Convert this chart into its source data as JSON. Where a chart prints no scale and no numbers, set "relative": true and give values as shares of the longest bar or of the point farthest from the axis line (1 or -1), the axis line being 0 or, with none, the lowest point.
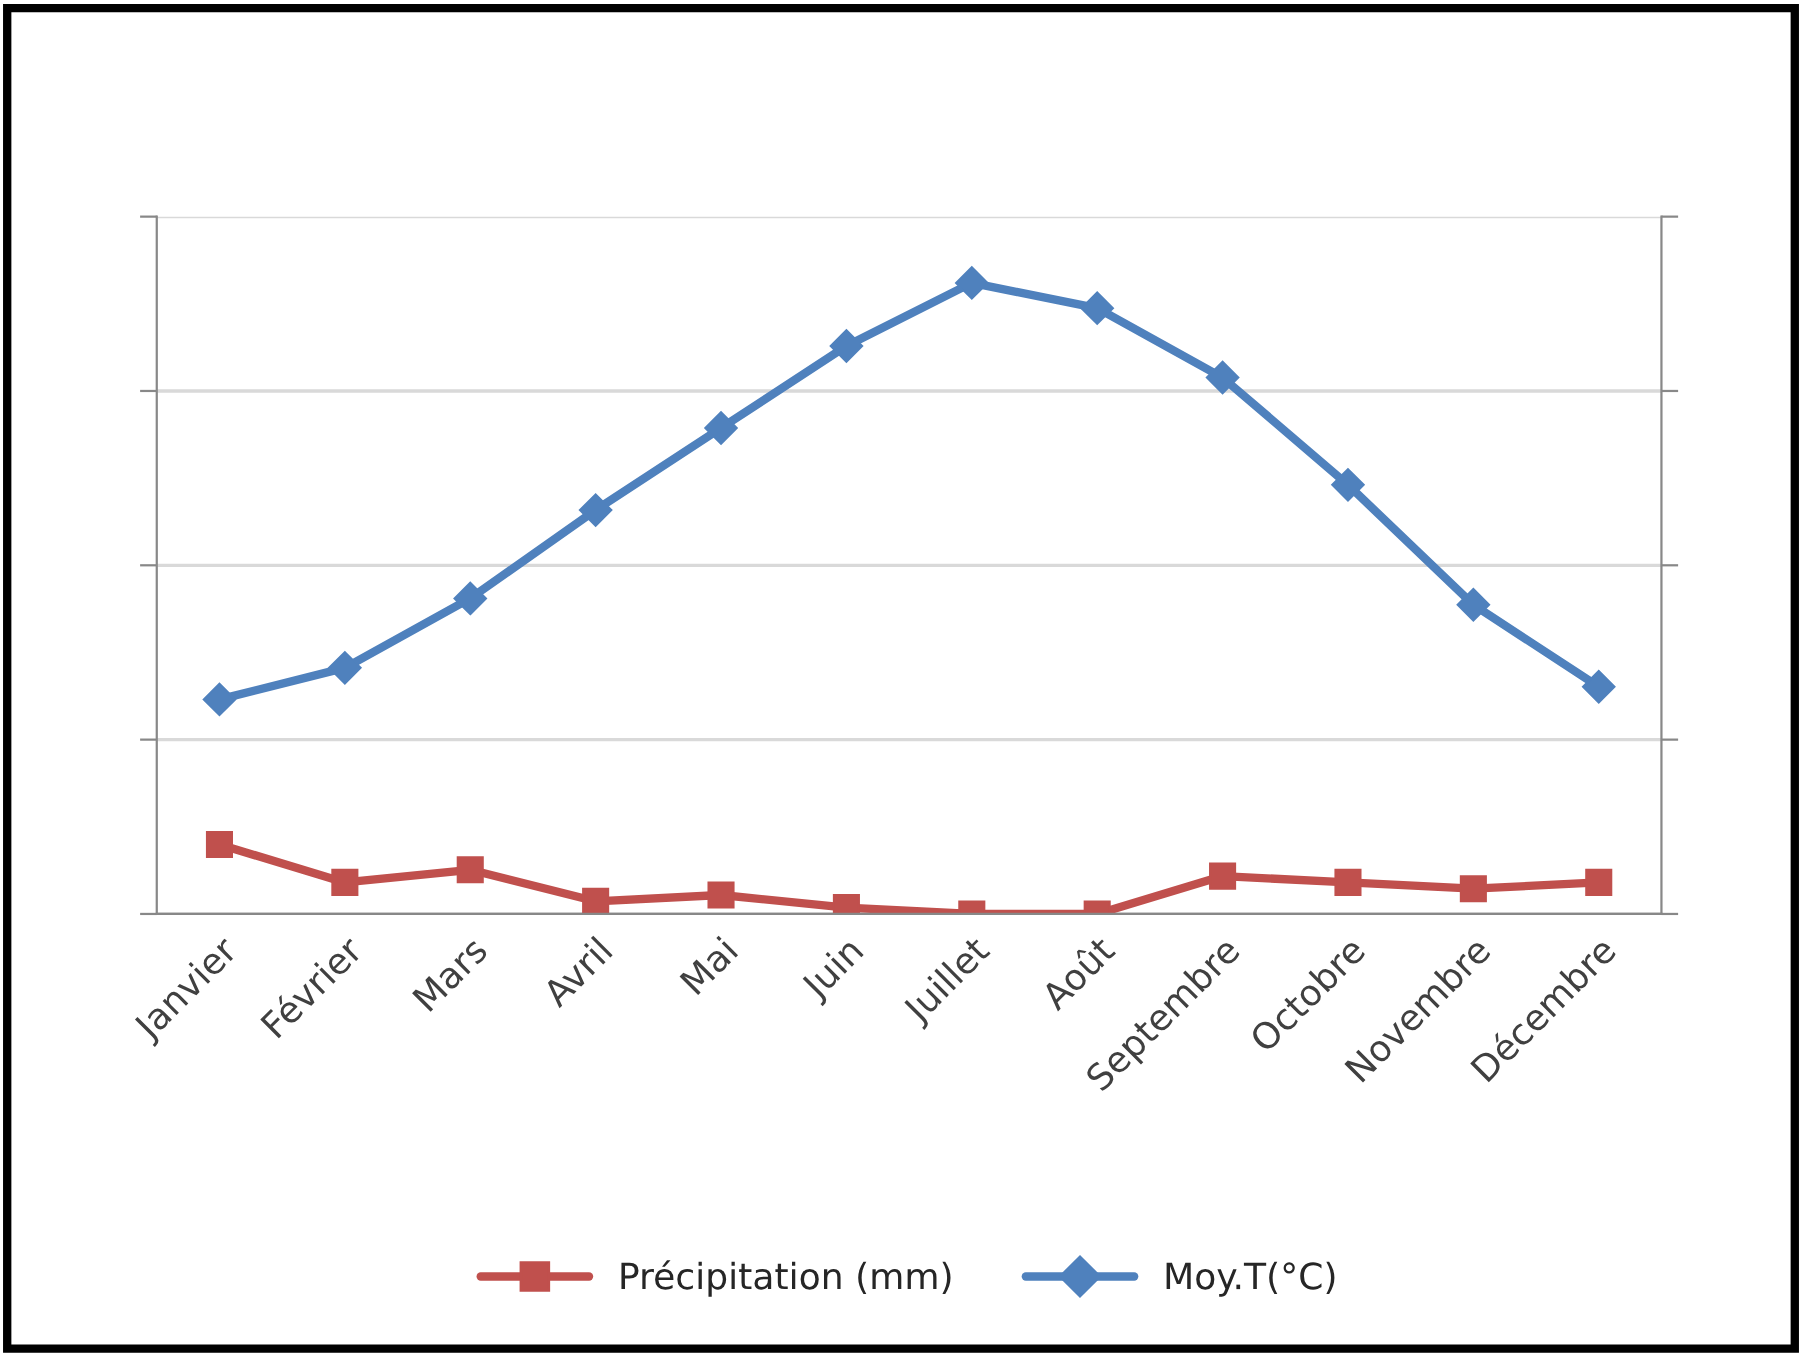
{
  "chart_data": {
    "type": "line",
    "relative": true,
    "categories": [
      "Janvier",
      "Février",
      "Mars",
      "Avril",
      "Mai",
      "Juin",
      "Juillet",
      "Août",
      "Septembre",
      "Octobre",
      "Novembre",
      "Décembre"
    ],
    "series": [
      {
        "name": "Précipitation (mm)",
        "color": "#c0504d",
        "marker": "square",
        "values": [
          0.11,
          0.05,
          0.07,
          0.02,
          0.03,
          0.01,
          0.0,
          0.0,
          0.06,
          0.05,
          0.04,
          0.05
        ]
      },
      {
        "name": "Moy.T(°C)",
        "color": "#4f81bd",
        "marker": "diamond",
        "values": [
          0.34,
          0.39,
          0.5,
          0.64,
          0.77,
          0.9,
          1,
          0.96,
          0.85,
          0.68,
          0.49,
          0.36
        ]
      }
    ],
    "grid": "y",
    "legend": "bottom",
    "line_style": "solid"
  }
}
